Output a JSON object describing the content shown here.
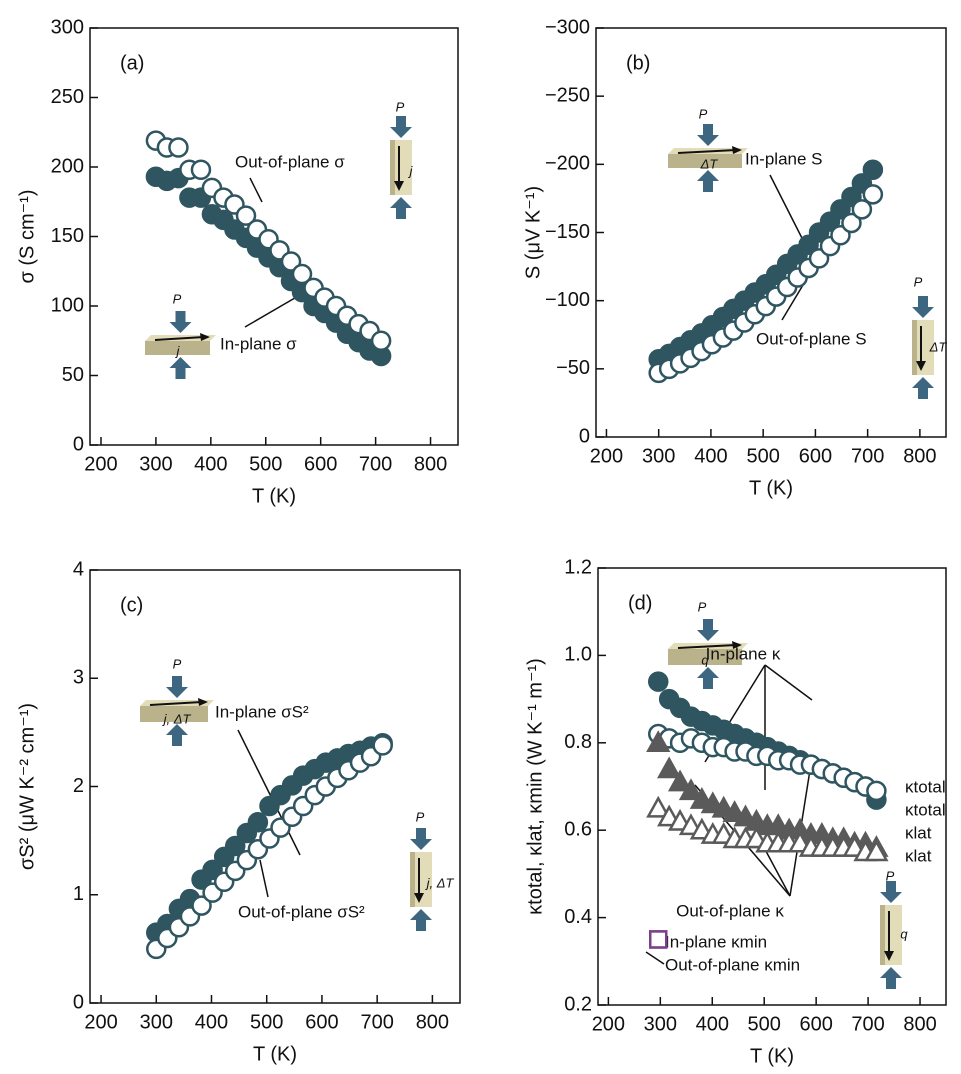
{
  "chart_data": [
    {
      "type": "scatter",
      "panel_label": "(a)",
      "x_label": "T (K)",
      "y_label": "σ (S cm⁻¹)",
      "xlim": [
        180,
        850
      ],
      "xticks": [
        200,
        300,
        400,
        500,
        600,
        700,
        800
      ],
      "ylim": [
        0,
        300
      ],
      "yticks": [
        0,
        50,
        100,
        150,
        200,
        250,
        300
      ],
      "x": [
        300,
        320,
        341,
        361,
        382,
        402,
        423,
        443,
        464,
        484,
        505,
        525,
        546,
        566,
        587,
        607,
        628,
        648,
        669,
        689,
        710
      ],
      "series": [
        {
          "name": "In-plane σ",
          "color": "#2e5560",
          "marker": "circle",
          "filled": true,
          "values": [
            193,
            190,
            192,
            178,
            178,
            166,
            162,
            155,
            149,
            142,
            135,
            128,
            118,
            110,
            100,
            95,
            88,
            80,
            74,
            68,
            64
          ]
        },
        {
          "name": "Out-of-plane σ",
          "color": "#2e5560",
          "marker": "circle",
          "filled": false,
          "values": [
            219,
            214,
            214,
            198,
            198,
            185,
            178,
            173,
            165,
            155,
            148,
            140,
            132,
            123,
            113,
            106,
            100,
            93,
            87,
            82,
            75
          ]
        }
      ],
      "annotations": [
        "P",
        "j",
        "P",
        "j"
      ]
    },
    {
      "type": "scatter",
      "panel_label": "(b)",
      "x_label": "T (K)",
      "y_label": "S (μV K⁻¹)",
      "xlim": [
        180,
        850
      ],
      "xticks": [
        200,
        300,
        400,
        500,
        600,
        700,
        800
      ],
      "ylim": [
        0,
        -300
      ],
      "yticks": [
        0,
        {
          "value": -50,
          "label": "−50"
        },
        {
          "value": -100,
          "label": "−100"
        },
        {
          "value": -150,
          "label": "−150"
        },
        {
          "value": -200,
          "label": "−200"
        },
        {
          "value": -250,
          "label": "−250"
        },
        {
          "value": -300,
          "label": "−300"
        }
      ],
      "x": [
        300,
        320,
        341,
        361,
        382,
        402,
        423,
        443,
        464,
        484,
        505,
        525,
        546,
        566,
        587,
        607,
        628,
        648,
        669,
        689,
        710
      ],
      "series": [
        {
          "name": "In-plane S",
          "color": "#2e5560",
          "marker": "circle",
          "filled": true,
          "values": [
            -57,
            -61,
            -66,
            -71,
            -76,
            -82,
            -88,
            -94,
            -100,
            -106,
            -112,
            -119,
            -127,
            -134,
            -141,
            -150,
            -158,
            -167,
            -176,
            -186,
            -196
          ]
        },
        {
          "name": "Out-of-plane S",
          "color": "#2e5560",
          "marker": "circle",
          "filled": false,
          "values": [
            -47,
            -50,
            -54,
            -58,
            -63,
            -68,
            -73,
            -78,
            -84,
            -90,
            -96,
            -103,
            -110,
            -117,
            -124,
            -131,
            -140,
            -148,
            -157,
            -167,
            -178
          ]
        }
      ],
      "annotations": [
        "P",
        "ΔT",
        "P",
        "ΔT"
      ]
    },
    {
      "type": "scatter",
      "panel_label": "(c)",
      "x_label": "T (K)",
      "y_label": "σS² (μW K⁻² cm⁻¹)",
      "xlim": [
        180,
        850
      ],
      "xticks": [
        200,
        300,
        400,
        500,
        600,
        700,
        800
      ],
      "ylim": [
        0,
        4
      ],
      "yticks": [
        0,
        1,
        2,
        3,
        4
      ],
      "x": [
        300,
        320,
        341,
        361,
        382,
        402,
        423,
        443,
        464,
        484,
        505,
        525,
        546,
        566,
        587,
        607,
        628,
        648,
        669,
        689,
        710
      ],
      "series": [
        {
          "name": "In-plane σS²",
          "color": "#2e5560",
          "marker": "circle",
          "filled": true,
          "values": [
            0.65,
            0.73,
            0.87,
            0.96,
            1.14,
            1.23,
            1.35,
            1.45,
            1.57,
            1.67,
            1.82,
            1.92,
            2.01,
            2.1,
            2.16,
            2.22,
            2.26,
            2.3,
            2.33,
            2.37,
            2.4
          ]
        },
        {
          "name": "Out-of-plane σS²",
          "color": "#2e5560",
          "marker": "circle",
          "filled": false,
          "values": [
            0.5,
            0.6,
            0.7,
            0.8,
            0.9,
            1.02,
            1.12,
            1.22,
            1.32,
            1.42,
            1.52,
            1.62,
            1.72,
            1.82,
            1.92,
            2.0,
            2.08,
            2.15,
            2.22,
            2.28,
            2.38
          ]
        }
      ],
      "annotations": [
        "P",
        "j, ΔT",
        "P",
        "j, ΔT"
      ]
    },
    {
      "type": "scatter",
      "panel_label": "(d)",
      "x_label": "T (K)",
      "y_label": "κtotal, κlat, κmin (W K⁻¹ m⁻¹)",
      "xlim": [
        180,
        850
      ],
      "xticks": [
        200,
        300,
        400,
        500,
        600,
        700,
        800
      ],
      "ylim": [
        0.2,
        1.2
      ],
      "yticks": [
        0.2,
        0.4,
        0.6,
        0.8,
        {
          "value": 1,
          "label": "1.0"
        },
        1.2
      ],
      "x": [
        296,
        317,
        338,
        359,
        380,
        401,
        422,
        443,
        464,
        485,
        506,
        527,
        548,
        569,
        590,
        611,
        632,
        653,
        674,
        695,
        716
      ],
      "series": [
        {
          "name": "κtotal",
          "color": "#2e5560",
          "marker": "circle",
          "filled": true,
          "values": [
            0.94,
            0.9,
            0.88,
            0.86,
            0.85,
            0.84,
            0.83,
            0.82,
            0.81,
            0.8,
            0.79,
            0.78,
            0.77,
            0.76,
            0.75,
            0.74,
            0.73,
            0.72,
            0.71,
            0.7,
            0.67
          ]
        },
        {
          "name": "κtotal",
          "color": "#2e5560",
          "marker": "circle",
          "filled": false,
          "values": [
            0.82,
            0.81,
            0.8,
            0.81,
            0.8,
            0.79,
            0.79,
            0.78,
            0.78,
            0.77,
            0.77,
            0.76,
            0.76,
            0.75,
            0.75,
            0.74,
            0.73,
            0.72,
            0.71,
            0.7,
            0.69
          ]
        },
        {
          "name": "κlat",
          "color": "#5a5a5a",
          "marker": "triangle",
          "filled": true,
          "values": [
            0.8,
            0.74,
            0.71,
            0.69,
            0.67,
            0.66,
            0.65,
            0.64,
            0.63,
            0.62,
            0.61,
            0.61,
            0.6,
            0.6,
            0.59,
            0.59,
            0.58,
            0.58,
            0.57,
            0.57,
            0.56
          ]
        },
        {
          "name": "κlat",
          "color": "#5a5a5a",
          "marker": "triangle",
          "filled": false,
          "values": [
            0.65,
            0.63,
            0.62,
            0.61,
            0.6,
            0.59,
            0.59,
            0.58,
            0.58,
            0.58,
            0.57,
            0.57,
            0.57,
            0.57,
            0.56,
            0.56,
            0.56,
            0.56,
            0.56,
            0.55,
            0.55
          ]
        },
        {
          "name": "In-plane κmin",
          "color": "#7b3f8c",
          "marker": "square",
          "filled": true,
          "values": [
            0.35,
            null,
            null,
            null,
            null,
            null,
            null,
            null,
            null,
            null,
            null,
            null,
            null,
            null,
            null,
            null,
            null,
            null,
            null,
            null,
            null
          ]
        },
        {
          "name": "Out-of-plane κmin",
          "color": "#7b3f8c",
          "marker": "square",
          "filled": false,
          "values": [
            0.35,
            null,
            null,
            null,
            null,
            null,
            null,
            null,
            null,
            null,
            null,
            null,
            null,
            null,
            null,
            null,
            null,
            null,
            null,
            null,
            null
          ]
        }
      ],
      "annotations": [
        "In-plane κ",
        "Out-of-plane κ",
        "P",
        "q",
        "P",
        "q"
      ]
    }
  ]
}
